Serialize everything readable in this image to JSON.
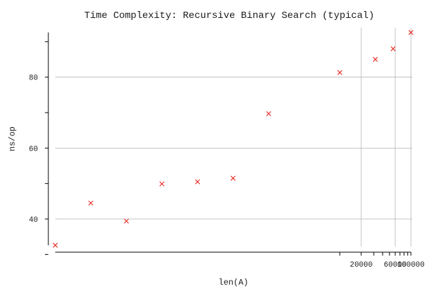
{
  "chart_data": {
    "type": "scatter",
    "title": "Time Complexity: Recursive Binary Search (typical)",
    "xlabel": "len(A)",
    "ylabel": "ns/op",
    "xscale": "log",
    "xlim": [
      1,
      100000
    ],
    "ylim": [
      32.6,
      92.6
    ],
    "grid": "major",
    "x_ticks": [
      {
        "value": 10000,
        "label": ""
      },
      {
        "value": 20000,
        "label": "20000"
      },
      {
        "value": 30000,
        "label": ""
      },
      {
        "value": 40000,
        "label": ""
      },
      {
        "value": 50000,
        "label": ""
      },
      {
        "value": 60000,
        "label": "60000"
      },
      {
        "value": 70000,
        "label": ""
      },
      {
        "value": 80000,
        "label": ""
      },
      {
        "value": 90000,
        "label": ""
      },
      {
        "value": 100000,
        "label": "100000"
      }
    ],
    "x_grid": [
      20000,
      60000,
      100000
    ],
    "y_ticks": [
      {
        "value": 30,
        "label": ""
      },
      {
        "value": 40,
        "label": "40"
      },
      {
        "value": 50,
        "label": ""
      },
      {
        "value": 60,
        "label": "60"
      },
      {
        "value": 70,
        "label": ""
      },
      {
        "value": 80,
        "label": "80"
      },
      {
        "value": 90,
        "label": ""
      }
    ],
    "y_grid": [
      40,
      60,
      80
    ],
    "colors": {
      "marker": "#e8251f",
      "grid": "#b3b3b3",
      "axis": "#000000",
      "text": "#1a1a1a"
    },
    "series": [
      {
        "marker": "x",
        "points": [
          {
            "x": 1,
            "y": 32.6
          },
          {
            "x": 3.16,
            "y": 44.5
          },
          {
            "x": 10,
            "y": 39.4
          },
          {
            "x": 31.6,
            "y": 49.9
          },
          {
            "x": 100,
            "y": 50.5
          },
          {
            "x": 316,
            "y": 51.5
          },
          {
            "x": 1000,
            "y": 69.7
          },
          {
            "x": 10000,
            "y": 81.3
          },
          {
            "x": 31600,
            "y": 85.0
          },
          {
            "x": 56200,
            "y": 88.0
          },
          {
            "x": 100000,
            "y": 92.6
          }
        ]
      }
    ]
  }
}
